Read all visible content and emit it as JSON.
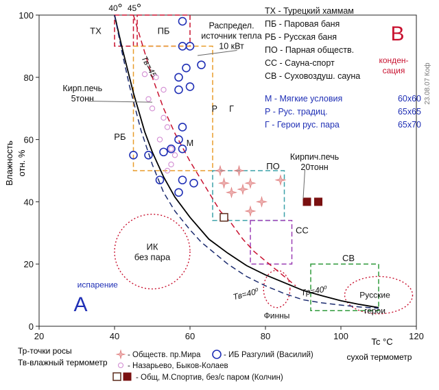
{
  "chart_data": {
    "type": "scatter",
    "xlabel": "Tc °C",
    "xlabel_sub": "сухой термометр",
    "ylabel": "Влажность",
    "ylabel_sub": "отн. %",
    "xlim": [
      20,
      120
    ],
    "ylim": [
      0,
      100
    ],
    "xticks": [
      20,
      40,
      60,
      80,
      100,
      120
    ],
    "yticks": [
      0,
      20,
      40,
      60,
      80,
      100
    ],
    "grid": false,
    "side_label": "23.08.07 Коф",
    "top_labels": [
      "40",
      "45"
    ],
    "zones": [
      {
        "id": "TX",
        "label": "ТХ",
        "x": [
          40,
          45
        ],
        "y": [
          90,
          100
        ],
        "color": "#c8102e"
      },
      {
        "id": "PB",
        "label": "ПБ",
        "x": [
          46,
          60
        ],
        "y": [
          90,
          100
        ],
        "color": "#c8102e"
      },
      {
        "id": "RB",
        "label": "РБ",
        "x": [
          45,
          66
        ],
        "y": [
          50,
          90
        ],
        "color": "#e89c2a"
      },
      {
        "id": "PO",
        "label": "ПО",
        "x": [
          66,
          85
        ],
        "y": [
          34,
          50
        ],
        "color": "#3aa0a8"
      },
      {
        "id": "SS",
        "label": "СС",
        "x": [
          76,
          87
        ],
        "y": [
          20,
          34
        ],
        "color": "#9b3fb5"
      },
      {
        "id": "SV",
        "label": "СВ",
        "x": [
          92,
          110
        ],
        "y": [
          5,
          20
        ],
        "color": "#2e9a3a"
      }
    ],
    "ellipses": [
      {
        "id": "ik",
        "label": "ИК",
        "label2": "без пара",
        "cx": 50,
        "cy": 24,
        "rx": 10,
        "ry": 12,
        "color": "#c8102e"
      },
      {
        "id": "finny",
        "label": "Финны",
        "cx": 83,
        "cy": 12,
        "rx": 3.5,
        "ry": 6,
        "color": "#c8102e"
      },
      {
        "id": "russkie",
        "label": "Русские",
        "label2": "герои",
        "cx": 110,
        "cy": 10,
        "rx": 9,
        "ry": 6,
        "color": "#c8102e"
      }
    ],
    "curves": [
      {
        "name": "Тр=40°",
        "style": "solid",
        "color": "#000000",
        "label": "Тр=40⁰",
        "x": [
          40,
          42,
          45,
          48,
          50,
          53,
          56,
          60,
          65,
          70,
          75,
          80,
          85,
          90,
          95,
          100,
          105,
          110
        ],
        "y": [
          100,
          89.5,
          75,
          62.5,
          56,
          48,
          41.5,
          35,
          28,
          23.5,
          19.5,
          16.5,
          14,
          11.5,
          9.8,
          8.2,
          7,
          6
        ]
      },
      {
        "name": "Тв=45",
        "style": "dashed",
        "color": "#c8102e",
        "label": "Тв=45",
        "x": [
          45,
          48,
          50,
          53,
          56,
          60,
          63,
          66,
          68,
          71,
          74,
          77,
          80,
          85,
          88
        ],
        "y": [
          100,
          88,
          80,
          70,
          62,
          53,
          47,
          41,
          37,
          33,
          28,
          24,
          21,
          16,
          13
        ]
      },
      {
        "name": "Тв=40",
        "style": "dashed",
        "color": "#1a2a6e",
        "label": "Тв=40⁰",
        "x": [
          40,
          42,
          44,
          47,
          50,
          53,
          56,
          60,
          63,
          66,
          70,
          75,
          80,
          85,
          90,
          95,
          100,
          105,
          110
        ],
        "y": [
          100,
          88,
          77,
          63,
          52,
          43,
          37,
          31,
          27,
          24,
          20,
          16,
          13,
          10.5,
          8.5,
          7.5,
          6.8,
          6.2,
          5.8
        ]
      }
    ],
    "series": [
      {
        "name": "- Обществ. пр.Мира",
        "marker": "star",
        "color": "#e07f7f",
        "points": [
          [
            68,
            50
          ],
          [
            73,
            50
          ],
          [
            69,
            46
          ],
          [
            76,
            46
          ],
          [
            84,
            47
          ],
          [
            71,
            43
          ],
          [
            79,
            40
          ],
          [
            76,
            37
          ],
          [
            74,
            44
          ]
        ]
      },
      {
        "name": "- Назарьево, Быков-Колаев",
        "marker": "small-circle",
        "color": "#d28cd2",
        "points": [
          [
            48,
            81
          ],
          [
            51,
            80
          ],
          [
            53,
            76
          ],
          [
            49,
            73
          ],
          [
            50,
            70
          ],
          [
            53,
            67
          ],
          [
            54,
            64
          ],
          [
            52,
            60
          ],
          [
            55,
            57
          ],
          [
            56,
            55
          ],
          [
            55,
            52
          ],
          [
            54,
            50
          ]
        ]
      },
      {
        "name": "- ИБ Разгулий (Василий)",
        "marker": "circle",
        "color": "#1f2fb5",
        "points": [
          [
            58,
            98
          ],
          [
            58,
            90
          ],
          [
            60,
            90
          ],
          [
            63,
            84
          ],
          [
            59,
            83
          ],
          [
            57,
            80
          ],
          [
            60,
            77
          ],
          [
            57,
            76
          ],
          [
            58,
            64
          ],
          [
            57,
            60
          ],
          [
            55,
            57
          ],
          [
            53,
            56
          ],
          [
            49,
            55
          ],
          [
            45,
            55
          ],
          [
            58,
            57
          ],
          [
            58,
            47
          ],
          [
            57,
            43
          ],
          [
            61,
            46
          ],
          [
            52,
            47
          ]
        ]
      },
      {
        "name": "- Общ, М.Спортив, без/с паром (Колчин)",
        "marker": "square",
        "color": "#7a1010",
        "points_open": [
          [
            69,
            35
          ]
        ],
        "points_filled": [
          [
            91,
            40
          ],
          [
            94,
            40
          ]
        ]
      }
    ],
    "annotations": [
      {
        "id": "kirpich5",
        "lines": [
          "Кирп.печь",
          "5тонн"
        ],
        "x": 31.5,
        "y": 75,
        "to": [
          50,
          72
        ]
      },
      {
        "id": "raspred",
        "lines": [
          "Распредел.",
          "источник тепла",
          "10 кВт"
        ],
        "x": 71,
        "y": 93.5,
        "to": [
          62,
          87
        ]
      },
      {
        "id": "kirpich20",
        "lines": [
          "Кирпич.печь",
          "20тонн"
        ],
        "x": 93,
        "y": 53,
        "to": [
          90,
          41
        ]
      },
      {
        "id": "ik-label",
        "lines": [
          "ИК",
          "без пара"
        ],
        "x": 50,
        "y": 24
      },
      {
        "id": "isparenie",
        "lines": [
          "испарение"
        ],
        "x": 35.5,
        "y": 13.5,
        "color": "#1f2fb5"
      },
      {
        "id": "big-A",
        "lines": [
          "А"
        ],
        "x": 31,
        "y": 6,
        "color": "#1f2fb5"
      },
      {
        "id": "big-B",
        "lines": [
          "В"
        ],
        "x": 115,
        "y": 93,
        "color": "#c8102e"
      },
      {
        "id": "kondens",
        "lines": [
          "конден-",
          "сация"
        ],
        "x": 114,
        "y": 84,
        "color": "#c8102e"
      },
      {
        "id": "R-label",
        "lines": [
          "Р"
        ],
        "x": 66.5,
        "y": 70
      },
      {
        "id": "G-label",
        "lines": [
          "Г"
        ],
        "x": 71,
        "y": 70
      },
      {
        "id": "M-label",
        "lines": [
          "М"
        ],
        "x": 60,
        "y": 59
      }
    ],
    "legend_top": [
      "ТХ - Турецкий хаммам",
      "ПБ - Паровая баня",
      "РБ - Русская баня",
      "ПО - Парная обществ.",
      "СС - Сауна-спорт",
      "СВ - Суховоздуш. сауна"
    ],
    "legend_conditions": [
      {
        "label": "М - Мягкие условия",
        "value": "60х60"
      },
      {
        "label": "Р - Рус. традиц.",
        "value": "65х65"
      },
      {
        "label": "Г - Герои рус. пара",
        "value": "65х70"
      }
    ],
    "footnotes": [
      "Тр-точки росы",
      "Тв-влажный термометр"
    ]
  }
}
